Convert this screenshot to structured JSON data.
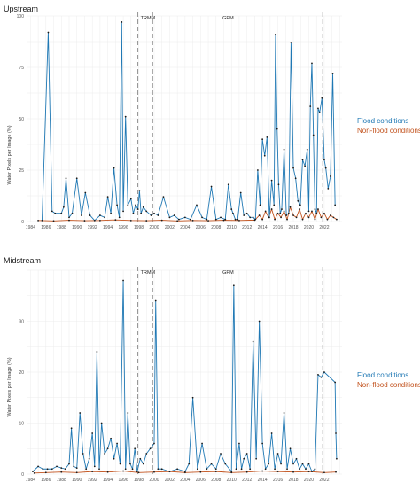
{
  "colors": {
    "flood": "#1f78b4",
    "nonflood": "#c2521d",
    "black": "#1a1a1a",
    "grid": "#ececec",
    "vline": "#777777"
  },
  "chart_data": [
    {
      "type": "line",
      "title": "Upstream",
      "ylabel": "Water Pixels per Image (%)",
      "xlim": [
        1983.5,
        2024.3
      ],
      "ylim": [
        0,
        100
      ],
      "xticks": [
        "1984",
        "1986",
        "1988",
        "1990",
        "1992",
        "1994",
        "1996",
        "1998",
        "2000",
        "2002",
        "2004",
        "2006",
        "2008",
        "2010",
        "2012",
        "2014",
        "2016",
        "2018",
        "2020",
        "2022"
      ],
      "yticks": [
        "0",
        "25",
        "50",
        "75",
        "100"
      ],
      "grid": true,
      "legend": "right",
      "annotations": [
        {
          "label": "TRMM",
          "x": 1997.9
        },
        {
          "label": "GPM",
          "x": 2008.5
        }
      ],
      "vlines": [
        1997.9,
        1999.8,
        2021.8
      ],
      "series": [
        {
          "name": "Flood conditions",
          "color_key": "flood",
          "x": [
            1985.5,
            1986.3,
            1986.8,
            1987.2,
            1988,
            1988.3,
            1988.6,
            1989,
            1989.4,
            1990,
            1990.6,
            1991.1,
            1991.7,
            1992.3,
            1993,
            1993.6,
            1994,
            1994.4,
            1994.8,
            1995.2,
            1995.5,
            1995.8,
            1996,
            1996.3,
            1996.6,
            1997,
            1997.3,
            1997.6,
            1997.9,
            1998.1,
            1998.3,
            1998.6,
            1999,
            1999.6,
            2000,
            2000.5,
            2001.2,
            2002,
            2002.6,
            2003.2,
            2004,
            2004.7,
            2005.5,
            2006.2,
            2006.8,
            2007.4,
            2008,
            2008.6,
            2009.2,
            2009.6,
            2010,
            2010.2,
            2010.5,
            2010.8,
            2011.2,
            2011.6,
            2012,
            2012.4,
            2012.8,
            2013.1,
            2013.4,
            2013.7,
            2014,
            2014.3,
            2014.6,
            2014.9,
            2015.2,
            2015.5,
            2015.7,
            2015.9,
            2016.1,
            2016.3,
            2016.5,
            2016.8,
            2017.1,
            2017.4,
            2017.7,
            2018,
            2018.3,
            2018.6,
            2018.9,
            2019.2,
            2019.5,
            2019.8,
            2020,
            2020.2,
            2020.4,
            2020.6,
            2020.8,
            2021,
            2021.2,
            2021.4,
            2021.7,
            2022,
            2022.2,
            2022.5,
            2022.8,
            2023.1,
            2023.4
          ],
          "values": [
            0.5,
            92,
            5,
            4,
            4,
            7,
            21,
            2,
            4,
            21,
            3,
            14,
            3,
            0.5,
            3,
            2,
            12,
            4,
            26,
            8,
            2,
            97,
            5,
            51,
            8,
            11,
            4,
            8,
            6,
            15,
            4,
            7,
            5,
            3,
            4,
            3,
            12,
            2,
            3,
            1,
            2,
            1,
            8,
            2,
            1,
            17,
            1,
            2,
            1,
            18,
            6,
            4,
            1,
            1,
            14,
            3,
            4,
            2,
            2,
            1,
            25,
            8,
            40,
            32,
            41,
            2,
            20,
            8,
            91,
            45,
            18,
            4,
            6,
            35,
            3,
            4,
            87,
            26,
            21,
            10,
            8,
            30,
            27,
            35,
            5,
            56,
            77,
            42,
            6,
            4,
            55,
            53,
            60,
            30,
            26,
            16,
            22,
            72,
            8
          ]
        },
        {
          "name": "Non-flood conditions",
          "color_key": "nonflood",
          "x": [
            1985,
            1987,
            1989,
            1991,
            1993,
            1995,
            1997,
            1999,
            2001,
            2003,
            2005,
            2007,
            2009,
            2011,
            2013,
            2013.6,
            2014,
            2014.4,
            2014.8,
            2015.2,
            2015.6,
            2016,
            2016.4,
            2016.8,
            2017.2,
            2017.6,
            2018,
            2018.4,
            2018.8,
            2019.2,
            2019.6,
            2020,
            2020.4,
            2020.8,
            2021.2,
            2021.6,
            2022,
            2022.4,
            2022.8,
            2023.2,
            2023.6
          ],
          "values": [
            0.5,
            0.3,
            0.6,
            0.4,
            0.5,
            0.8,
            0.5,
            0.4,
            0.6,
            0.3,
            0.5,
            0.4,
            0.6,
            0.5,
            0.7,
            3,
            1,
            5,
            2,
            6,
            1,
            4,
            2,
            5,
            1,
            7,
            3,
            2,
            6,
            1,
            4,
            2,
            5,
            1,
            6,
            2,
            4,
            1,
            3,
            2,
            1
          ]
        }
      ]
    },
    {
      "type": "line",
      "title": "Midstream",
      "ylabel": "Water Pixels per Image (%)",
      "xlim": [
        1983.5,
        2024.3
      ],
      "ylim": [
        0,
        40
      ],
      "xticks": [
        "1984",
        "1986",
        "1988",
        "1990",
        "1992",
        "1994",
        "1996",
        "1998",
        "2000",
        "2002",
        "2004",
        "2006",
        "2008",
        "2010",
        "2012",
        "2014",
        "2016",
        "2018",
        "2020",
        "2022"
      ],
      "yticks": [
        "0",
        "10",
        "20",
        "30"
      ],
      "grid": true,
      "legend": "right",
      "annotations": [
        {
          "label": "TRMM",
          "x": 1997.9
        },
        {
          "label": "GPM",
          "x": 2008.5
        }
      ],
      "vlines": [
        1997.9,
        1999.8,
        2021.8
      ],
      "series": [
        {
          "name": "Flood conditions",
          "color_key": "flood",
          "x": [
            1984.3,
            1985,
            1985.6,
            1986.2,
            1986.8,
            1987.4,
            1988,
            1988.5,
            1989,
            1989.3,
            1989.6,
            1990,
            1990.4,
            1990.8,
            1991.2,
            1991.6,
            1992,
            1992.3,
            1992.6,
            1992.9,
            1993.2,
            1993.6,
            1994,
            1994.4,
            1994.8,
            1995.2,
            1995.6,
            1996,
            1996.3,
            1996.6,
            1996.9,
            1997.2,
            1997.5,
            1997.8,
            1998.2,
            1998.6,
            1999,
            1999.5,
            2000,
            2000.2,
            2000.5,
            2001,
            2002,
            2003,
            2004,
            2004.5,
            2005,
            2005.6,
            2006.2,
            2006.8,
            2007.4,
            2008,
            2008.6,
            2009.2,
            2010,
            2010.3,
            2010.6,
            2011,
            2011.3,
            2011.6,
            2012,
            2012.4,
            2012.8,
            2013.2,
            2013.6,
            2014,
            2014.4,
            2014.8,
            2015.2,
            2015.6,
            2016,
            2016.4,
            2016.8,
            2017.2,
            2017.6,
            2018,
            2018.4,
            2018.8,
            2019.2,
            2019.6,
            2020,
            2020.4,
            2020.8,
            2021.2,
            2021.6,
            2022,
            2023.4,
            2023.5,
            2023.6
          ],
          "values": [
            0.5,
            1.5,
            1,
            1,
            1,
            1.5,
            1.2,
            1,
            2,
            9,
            1.5,
            1.2,
            12,
            4,
            1,
            3,
            8,
            1.5,
            24,
            1,
            10,
            4,
            5,
            7,
            3,
            6,
            2,
            38,
            1,
            12,
            2,
            1,
            5,
            0.5,
            3,
            2,
            4,
            5,
            6,
            34,
            1,
            1,
            0.5,
            1,
            0.5,
            2,
            15,
            1,
            6,
            1,
            2,
            1,
            4,
            2,
            0.5,
            37,
            1,
            6,
            1,
            3,
            4,
            1,
            26,
            3,
            30,
            6,
            1,
            2,
            8,
            1,
            4,
            2,
            12,
            1,
            5,
            2,
            3,
            1,
            2,
            1,
            2,
            0.5,
            1,
            19.5,
            19,
            20,
            18,
            8,
            3
          ]
        },
        {
          "name": "Non-flood conditions",
          "color_key": "nonflood",
          "x": [
            1984.5,
            1986,
            1988,
            1990,
            1992,
            1994,
            1996,
            1998,
            2000,
            2002,
            2004,
            2006,
            2008,
            2010,
            2012,
            2014,
            2016,
            2018,
            2020,
            2022,
            2023.5
          ],
          "values": [
            0.2,
            0.3,
            0.4,
            0.3,
            0.5,
            0.4,
            0.6,
            0.3,
            0.4,
            0.5,
            0.3,
            0.4,
            0.5,
            0.3,
            0.4,
            0.6,
            0.5,
            0.4,
            0.5,
            0.3,
            0.4
          ]
        }
      ]
    }
  ]
}
